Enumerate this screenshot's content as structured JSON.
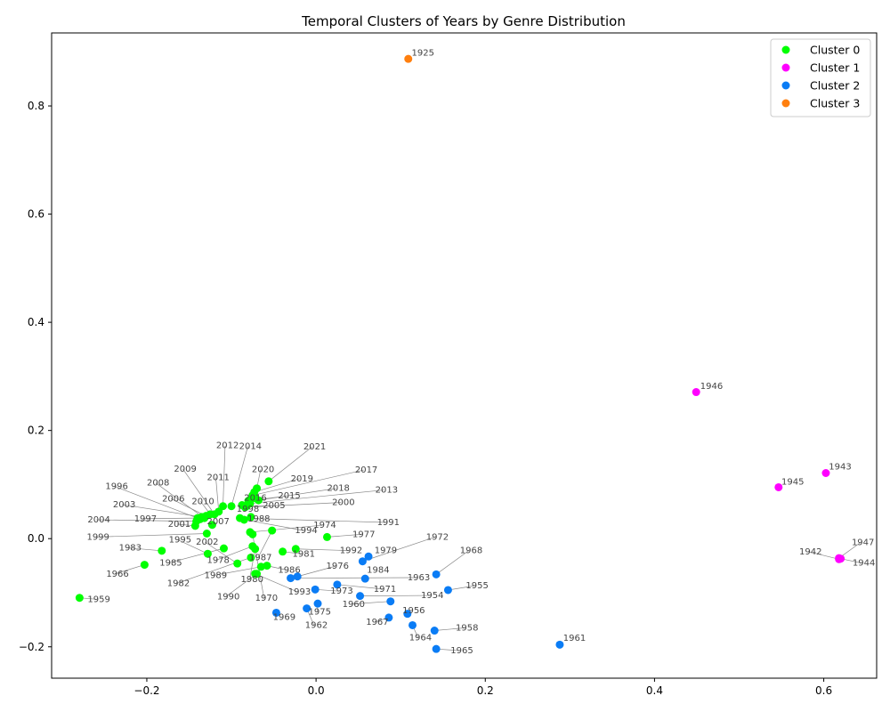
{
  "chart_data": {
    "type": "scatter",
    "title": "Temporal Clusters of Years by Genre Distribution",
    "xlabel": "",
    "ylabel": "",
    "xlim": [
      -0.3125,
      0.6625
    ],
    "ylim": [
      -0.258,
      0.935
    ],
    "xticks": [
      -0.2,
      0.0,
      0.2,
      0.4,
      0.6
    ],
    "xtick_labels": [
      "−0.2",
      "0.0",
      "0.2",
      "0.4",
      "0.6"
    ],
    "yticks": [
      -0.2,
      0.0,
      0.2,
      0.4,
      0.6,
      0.8
    ],
    "ytick_labels": [
      "−0.2",
      "0.0",
      "0.2",
      "0.4",
      "0.6",
      "0.8"
    ],
    "grid": false,
    "legend_position": "top-right",
    "series": [
      {
        "name": "Cluster 0",
        "color": "#00ff00",
        "points": [
          {
            "label": "1959",
            "x": -0.2795,
            "y": -0.1094
          },
          {
            "label": "1966",
            "x": -0.2027,
            "y": -0.0483
          },
          {
            "label": "1983",
            "x": -0.1823,
            "y": -0.0224
          },
          {
            "label": "1999",
            "x": -0.1291,
            "y": 0.0094
          },
          {
            "label": "2004",
            "x": -0.1415,
            "y": 0.032
          },
          {
            "label": "1997",
            "x": -0.14,
            "y": 0.038
          },
          {
            "label": "2003",
            "x": -0.135,
            "y": 0.04
          },
          {
            "label": "1996",
            "x": -0.137,
            "y": 0.036
          },
          {
            "label": "2008",
            "x": -0.132,
            "y": 0.038
          },
          {
            "label": "2006",
            "x": -0.13,
            "y": 0.042
          },
          {
            "label": "2010",
            "x": -0.125,
            "y": 0.045
          },
          {
            "label": "2001",
            "x": -0.1428,
            "y": 0.0236
          },
          {
            "label": "2007",
            "x": -0.1227,
            "y": 0.0255
          },
          {
            "label": "2009",
            "x": -0.12,
            "y": 0.045
          },
          {
            "label": "2011",
            "x": -0.115,
            "y": 0.05
          },
          {
            "label": "2012",
            "x": -0.11,
            "y": 0.06
          },
          {
            "label": "2014",
            "x": -0.1,
            "y": 0.06
          },
          {
            "label": "1995",
            "x": -0.128,
            "y": -0.028
          },
          {
            "label": "1985",
            "x": -0.109,
            "y": -0.018
          },
          {
            "label": "2002",
            "x": -0.093,
            "y": -0.046
          },
          {
            "label": "1982",
            "x": -0.077,
            "y": -0.035
          },
          {
            "label": "1978",
            "x": -0.075,
            "y": -0.014
          },
          {
            "label": "1989",
            "x": -0.065,
            "y": -0.052
          },
          {
            "label": "1990",
            "x": -0.07,
            "y": -0.065
          },
          {
            "label": "1980",
            "x": -0.072,
            "y": -0.019
          },
          {
            "label": "1987",
            "x": -0.052,
            "y": 0.015
          },
          {
            "label": "1970",
            "x": -0.075,
            "y": 0.008
          },
          {
            "label": "1998",
            "x": -0.0875,
            "y": 0.062
          },
          {
            "label": "2016",
            "x": -0.072,
            "y": 0.075
          },
          {
            "label": "1988",
            "x": -0.077,
            "y": 0.04
          },
          {
            "label": "2021",
            "x": -0.056,
            "y": 0.106
          },
          {
            "label": "2020",
            "x": -0.07,
            "y": 0.093
          },
          {
            "label": "2019",
            "x": -0.073,
            "y": 0.086
          },
          {
            "label": "2017",
            "x": -0.075,
            "y": 0.08
          },
          {
            "label": "2018",
            "x": -0.068,
            "y": 0.071
          },
          {
            "label": "2015",
            "x": -0.08,
            "y": 0.07
          },
          {
            "label": "2013",
            "x": -0.078,
            "y": 0.065
          },
          {
            "label": "2005",
            "x": -0.082,
            "y": 0.06
          },
          {
            "label": "2000",
            "x": -0.084,
            "y": 0.058
          },
          {
            "label": "1991",
            "x": -0.09,
            "y": 0.038
          },
          {
            "label": "1994",
            "x": -0.085,
            "y": 0.035
          },
          {
            "label": "1974",
            "x": -0.078,
            "y": 0.012
          },
          {
            "label": "1977",
            "x": 0.013,
            "y": 0.003
          },
          {
            "label": "1981",
            "x": -0.0395,
            "y": -0.024
          },
          {
            "label": "1992",
            "x": -0.024,
            "y": -0.019
          },
          {
            "label": "1986",
            "x": -0.058,
            "y": -0.05
          },
          {
            "label": "1993",
            "x": -0.072,
            "y": -0.065
          }
        ]
      },
      {
        "name": "Cluster 1",
        "color": "#ff00ff",
        "points": [
          {
            "label": "1946",
            "x": 0.4492,
            "y": 0.271
          },
          {
            "label": "1943",
            "x": 0.6025,
            "y": 0.1213
          },
          {
            "label": "1945",
            "x": 0.5466,
            "y": 0.095
          },
          {
            "label": "1947",
            "x": 0.618,
            "y": -0.036
          },
          {
            "label": "1942",
            "x": 0.618,
            "y": -0.038
          },
          {
            "label": "1944",
            "x": 0.62,
            "y": -0.037
          }
        ]
      },
      {
        "name": "Cluster 2",
        "color": "#0a7cf5",
        "points": [
          {
            "label": "1979",
            "x": 0.062,
            "y": -0.033
          },
          {
            "label": "1972",
            "x": 0.055,
            "y": -0.042
          },
          {
            "label": "1968",
            "x": 0.142,
            "y": -0.066
          },
          {
            "label": "1984",
            "x": 0.058,
            "y": -0.074
          },
          {
            "label": "1976",
            "x": -0.022,
            "y": -0.07
          },
          {
            "label": "1963",
            "x": -0.03,
            "y": -0.073
          },
          {
            "label": "1955",
            "x": 0.156,
            "y": -0.095
          },
          {
            "label": "1973",
            "x": -0.001,
            "y": -0.094
          },
          {
            "label": "1971",
            "x": 0.025,
            "y": -0.085
          },
          {
            "label": "1954",
            "x": 0.052,
            "y": -0.106
          },
          {
            "label": "1960",
            "x": 0.088,
            "y": -0.116
          },
          {
            "label": "1975",
            "x": 0.002,
            "y": -0.12
          },
          {
            "label": "1962",
            "x": -0.011,
            "y": -0.129
          },
          {
            "label": "1969",
            "x": -0.047,
            "y": -0.137
          },
          {
            "label": "1956",
            "x": 0.108,
            "y": -0.139
          },
          {
            "label": "1967",
            "x": 0.086,
            "y": -0.146
          },
          {
            "label": "1964",
            "x": 0.114,
            "y": -0.16
          },
          {
            "label": "1958",
            "x": 0.14,
            "y": -0.17
          },
          {
            "label": "1965",
            "x": 0.142,
            "y": -0.204
          },
          {
            "label": "1961",
            "x": 0.288,
            "y": -0.196
          }
        ]
      },
      {
        "name": "Cluster 3",
        "color": "#ff7f0e",
        "points": [
          {
            "label": "1925",
            "x": 0.109,
            "y": 0.887
          }
        ]
      }
    ],
    "annotations": [
      {
        "label": "1959",
        "tx": -0.27,
        "ty": -0.117
      },
      {
        "label": "1966",
        "tx": -0.248,
        "ty": -0.07
      },
      {
        "label": "1983",
        "tx": -0.233,
        "ty": -0.022
      },
      {
        "label": "1999",
        "tx": -0.271,
        "ty": -0.002
      },
      {
        "label": "2004",
        "tx": -0.27,
        "ty": 0.03
      },
      {
        "label": "1997",
        "tx": -0.215,
        "ty": 0.032
      },
      {
        "label": "2003",
        "tx": -0.24,
        "ty": 0.058
      },
      {
        "label": "1996",
        "tx": -0.249,
        "ty": 0.092
      },
      {
        "label": "2008",
        "tx": -0.2,
        "ty": 0.098
      },
      {
        "label": "2006",
        "tx": -0.182,
        "ty": 0.069
      },
      {
        "label": "2010",
        "tx": -0.147,
        "ty": 0.064
      },
      {
        "label": "2001",
        "tx": -0.175,
        "ty": 0.022
      },
      {
        "label": "2007",
        "tx": -0.129,
        "ty": 0.027
      },
      {
        "label": "2009",
        "tx": -0.168,
        "ty": 0.124
      },
      {
        "label": "2011",
        "tx": -0.129,
        "ty": 0.108
      },
      {
        "label": "2012",
        "tx": -0.118,
        "ty": 0.167
      },
      {
        "label": "2014",
        "tx": -0.091,
        "ty": 0.166
      },
      {
        "label": "1995",
        "tx": -0.174,
        "ty": -0.007
      },
      {
        "label": "1985",
        "tx": -0.185,
        "ty": -0.05
      },
      {
        "label": "2002",
        "tx": -0.142,
        "ty": -0.011
      },
      {
        "label": "1982",
        "tx": -0.176,
        "ty": -0.088
      },
      {
        "label": "1978",
        "tx": -0.129,
        "ty": -0.045
      },
      {
        "label": "1989",
        "tx": -0.132,
        "ty": -0.073
      },
      {
        "label": "1990",
        "tx": -0.117,
        "ty": -0.112
      },
      {
        "label": "1980",
        "tx": -0.089,
        "ty": -0.08
      },
      {
        "label": "1987",
        "tx": -0.079,
        "ty": -0.04
      },
      {
        "label": "1970",
        "tx": -0.072,
        "ty": -0.115
      },
      {
        "label": "1998",
        "tx": -0.094,
        "ty": 0.05
      },
      {
        "label": "2016",
        "tx": -0.085,
        "ty": 0.07
      },
      {
        "label": "1988",
        "tx": -0.081,
        "ty": 0.032
      },
      {
        "label": "2021",
        "tx": -0.015,
        "ty": 0.165
      },
      {
        "label": "2020",
        "tx": -0.076,
        "ty": 0.123
      },
      {
        "label": "2019",
        "tx": -0.03,
        "ty": 0.106
      },
      {
        "label": "2017",
        "tx": 0.046,
        "ty": 0.122
      },
      {
        "label": "2018",
        "tx": 0.013,
        "ty": 0.088
      },
      {
        "label": "2015",
        "tx": -0.045,
        "ty": 0.074
      },
      {
        "label": "2013",
        "tx": 0.07,
        "ty": 0.085
      },
      {
        "label": "2005",
        "tx": -0.063,
        "ty": 0.056
      },
      {
        "label": "2000",
        "tx": 0.019,
        "ty": 0.062
      },
      {
        "label": "1991",
        "tx": 0.072,
        "ty": 0.025
      },
      {
        "label": "1994",
        "tx": -0.025,
        "ty": 0.01
      },
      {
        "label": "1974",
        "tx": -0.003,
        "ty": 0.02
      },
      {
        "label": "1977",
        "tx": 0.043,
        "ty": 0.003
      },
      {
        "label": "1981",
        "tx": -0.028,
        "ty": -0.033
      },
      {
        "label": "1992",
        "tx": 0.028,
        "ty": -0.027
      },
      {
        "label": "1986",
        "tx": -0.045,
        "ty": -0.063
      },
      {
        "label": "1993",
        "tx": -0.033,
        "ty": -0.103
      },
      {
        "label": "1979",
        "tx": 0.069,
        "ty": -0.027
      },
      {
        "label": "1972",
        "tx": 0.13,
        "ty": -0.002
      },
      {
        "label": "1968",
        "tx": 0.17,
        "ty": -0.027
      },
      {
        "label": "1984",
        "tx": 0.06,
        "ty": -0.063
      },
      {
        "label": "1976",
        "tx": 0.012,
        "ty": -0.056
      },
      {
        "label": "1963",
        "tx": 0.108,
        "ty": -0.077
      },
      {
        "label": "1955",
        "tx": 0.177,
        "ty": -0.092
      },
      {
        "label": "1973",
        "tx": 0.017,
        "ty": -0.102
      },
      {
        "label": "1971",
        "tx": 0.068,
        "ty": -0.098
      },
      {
        "label": "1954",
        "tx": 0.124,
        "ty": -0.11
      },
      {
        "label": "1960",
        "tx": 0.031,
        "ty": -0.126
      },
      {
        "label": "1975",
        "tx": -0.009,
        "ty": -0.14
      },
      {
        "label": "1962",
        "tx": -0.013,
        "ty": -0.165
      },
      {
        "label": "1969",
        "tx": -0.051,
        "ty": -0.15
      },
      {
        "label": "1956",
        "tx": 0.102,
        "ty": -0.138
      },
      {
        "label": "1967",
        "tx": 0.059,
        "ty": -0.159
      },
      {
        "label": "1964",
        "tx": 0.11,
        "ty": -0.188
      },
      {
        "label": "1958",
        "tx": 0.165,
        "ty": -0.17
      },
      {
        "label": "1965",
        "tx": 0.159,
        "ty": -0.212
      },
      {
        "label": "1961",
        "tx": 0.292,
        "ty": -0.189
      },
      {
        "label": "1946",
        "tx": 0.454,
        "ty": 0.277
      },
      {
        "label": "1943",
        "tx": 0.606,
        "ty": 0.128
      },
      {
        "label": "1945",
        "tx": 0.55,
        "ty": 0.1
      },
      {
        "label": "1947",
        "tx": 0.633,
        "ty": -0.012
      },
      {
        "label": "1942",
        "tx": 0.571,
        "ty": -0.029
      },
      {
        "label": "1944",
        "tx": 0.634,
        "ty": -0.05
      },
      {
        "label": "1925",
        "tx": 0.113,
        "ty": 0.893
      }
    ]
  }
}
